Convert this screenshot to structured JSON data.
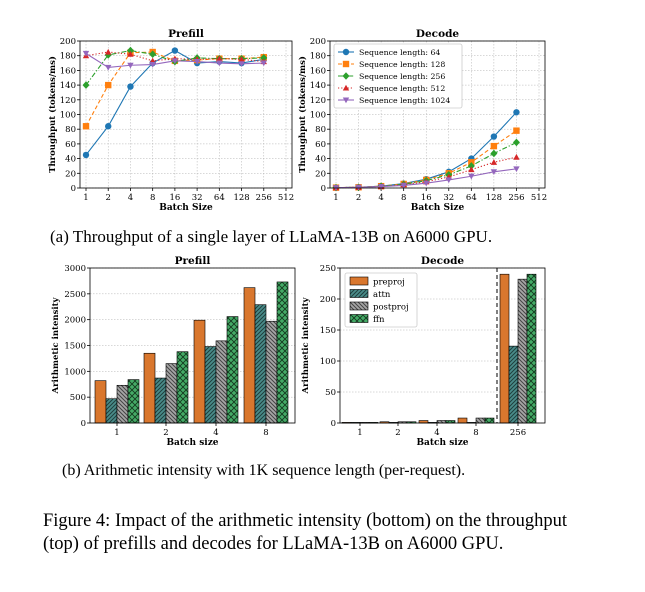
{
  "caption_a": "(a) Throughput of a single layer of LLaMA-13B on A6000 GPU.",
  "caption_b": "(b) Arithmetic intensity with 1K sequence length (per-request).",
  "figure_caption": "Figure 4: Impact of the arithmetic intensity (bottom) on the throughput (top) of prefills and decodes for LLaMA-13B on A6000 GPU.",
  "chart_data": [
    {
      "type": "line",
      "title": "Prefill",
      "xlabel": "Batch Size",
      "ylabel": "Throughput (tokens/ms)",
      "categories": [
        "1",
        "2",
        "4",
        "8",
        "16",
        "32",
        "64",
        "128",
        "256",
        "512"
      ],
      "ylim": [
        0,
        200
      ],
      "yticks": [
        0,
        20,
        40,
        60,
        80,
        100,
        120,
        140,
        160,
        180,
        200
      ],
      "grid": true,
      "series": [
        {
          "name": "Sequence length: 64",
          "color": "#1f77b4",
          "marker": "circle",
          "dash": "solid",
          "values": [
            45,
            84,
            138,
            170,
            187,
            170,
            172,
            170,
            175,
            null
          ]
        },
        {
          "name": "Sequence length: 128",
          "color": "#ff7f0e",
          "marker": "square",
          "dash": "dashed",
          "values": [
            84,
            140,
            184,
            185,
            173,
            174,
            176,
            176,
            178,
            null
          ]
        },
        {
          "name": "Sequence length: 256",
          "color": "#2ca02c",
          "marker": "diamond",
          "dash": "dashdot",
          "values": [
            140,
            181,
            187,
            182,
            172,
            177,
            176,
            176,
            177,
            null
          ]
        },
        {
          "name": "Sequence length: 512",
          "color": "#d62728",
          "marker": "triangle-up",
          "dash": "dotted",
          "values": [
            180,
            185,
            182,
            173,
            176,
            175,
            176,
            175,
            172,
            null
          ]
        },
        {
          "name": "Sequence length: 1024",
          "color": "#9467bd",
          "marker": "triangle-down",
          "dash": "solid",
          "values": [
            183,
            164,
            167,
            168,
            173,
            172,
            170,
            169,
            170,
            null
          ]
        }
      ]
    },
    {
      "type": "line",
      "title": "Decode",
      "xlabel": "Batch Size",
      "ylabel": "Throughput (tokens/ms)",
      "categories": [
        "1",
        "2",
        "4",
        "8",
        "16",
        "32",
        "64",
        "128",
        "256",
        "512"
      ],
      "ylim": [
        0,
        200
      ],
      "yticks": [
        0,
        20,
        40,
        60,
        80,
        100,
        120,
        140,
        160,
        180,
        200
      ],
      "grid": true,
      "legend": "top-left",
      "series": [
        {
          "name": "Sequence length: 64",
          "color": "#1f77b4",
          "marker": "circle",
          "dash": "solid",
          "values": [
            0.5,
            1,
            2.5,
            6,
            12,
            22,
            40,
            70,
            103,
            null
          ]
        },
        {
          "name": "Sequence length: 128",
          "color": "#ff7f0e",
          "marker": "square",
          "dash": "dashed",
          "values": [
            0.5,
            1,
            2.5,
            5.5,
            11,
            20,
            35,
            57,
            78,
            null
          ]
        },
        {
          "name": "Sequence length: 256",
          "color": "#2ca02c",
          "marker": "diamond",
          "dash": "dashdot",
          "values": [
            0.5,
            1,
            2.5,
            5,
            10,
            18,
            30,
            47,
            62,
            null
          ]
        },
        {
          "name": "Sequence length: 512",
          "color": "#d62728",
          "marker": "triangle-up",
          "dash": "dotted",
          "values": [
            0.5,
            1,
            2,
            4.5,
            8.5,
            15,
            25,
            35,
            42,
            null
          ]
        },
        {
          "name": "Sequence length: 1024",
          "color": "#9467bd",
          "marker": "triangle-down",
          "dash": "solid",
          "values": [
            0.5,
            1,
            2,
            3.5,
            6.5,
            11,
            16,
            22,
            26,
            null
          ]
        }
      ]
    },
    {
      "type": "bar",
      "title": "Prefill",
      "xlabel": "Batch size",
      "ylabel": "Arithmetic intensity",
      "categories": [
        "1",
        "2",
        "4",
        "8"
      ],
      "ylim": [
        0,
        3000
      ],
      "yticks": [
        0,
        500,
        1000,
        1500,
        2000,
        2500,
        3000
      ],
      "grid": true,
      "series": [
        {
          "name": "preproj",
          "color": "#d9772e",
          "pattern": "solid",
          "values": [
            820,
            1350,
            1990,
            2620
          ]
        },
        {
          "name": "attn",
          "color": "#4a8c8a",
          "pattern": "diag",
          "values": [
            470,
            870,
            1480,
            2290
          ]
        },
        {
          "name": "postproj",
          "color": "#a0a0a0",
          "pattern": "antidiag",
          "values": [
            730,
            1150,
            1590,
            1970
          ]
        },
        {
          "name": "ffn",
          "color": "#44aa66",
          "pattern": "cross",
          "values": [
            840,
            1380,
            2060,
            2730
          ]
        }
      ]
    },
    {
      "type": "bar",
      "title": "Decode",
      "xlabel": "Batch size",
      "ylabel": "Arithmetic intensity",
      "categories": [
        "1",
        "2",
        "4",
        "8",
        "256"
      ],
      "ylim": [
        0,
        250
      ],
      "yticks": [
        0,
        50,
        100,
        150,
        200,
        250
      ],
      "grid": true,
      "legend": "top-left",
      "series": [
        {
          "name": "preproj",
          "color": "#d9772e",
          "pattern": "solid",
          "values": [
            1,
            2,
            4,
            8,
            240
          ]
        },
        {
          "name": "attn",
          "color": "#4a8c8a",
          "pattern": "diag",
          "values": [
            1,
            1,
            1,
            1,
            124
          ]
        },
        {
          "name": "postproj",
          "color": "#a0a0a0",
          "pattern": "antidiag",
          "values": [
            1,
            2,
            4,
            8,
            232
          ]
        },
        {
          "name": "ffn",
          "color": "#44aa66",
          "pattern": "cross",
          "values": [
            1,
            2,
            4,
            8,
            240
          ]
        }
      ]
    }
  ]
}
